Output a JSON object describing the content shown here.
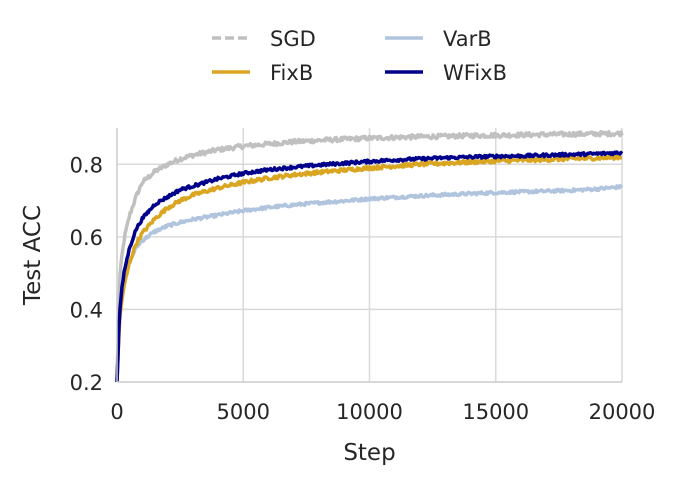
{
  "chart_data": {
    "type": "line",
    "title": "",
    "xlabel": "Step",
    "ylabel": "Test ACC",
    "xlim": [
      0,
      20000
    ],
    "ylim": [
      0.2,
      0.9
    ],
    "xticks": [
      0,
      5000,
      10000,
      15000,
      20000
    ],
    "xtick_labels": [
      "0",
      "5000",
      "10000",
      "15000",
      "20000"
    ],
    "yticks": [
      0.2,
      0.4,
      0.6,
      0.8
    ],
    "ytick_labels": [
      "0.2",
      "0.4",
      "0.6",
      "0.8"
    ],
    "grid": true,
    "legend_position": "top-center",
    "series": [
      {
        "name": "SGD",
        "color": "#c0c0c0",
        "dashed": true,
        "x": [
          0,
          100,
          200,
          300,
          500,
          750,
          1000,
          1500,
          2000,
          2500,
          3000,
          4000,
          5000,
          6000,
          7000,
          8000,
          9000,
          10000,
          11000,
          12000,
          13000,
          14000,
          15000,
          16000,
          17000,
          18000,
          19000,
          20000
        ],
        "y": [
          0.2,
          0.48,
          0.55,
          0.6,
          0.66,
          0.71,
          0.75,
          0.78,
          0.8,
          0.815,
          0.825,
          0.84,
          0.85,
          0.856,
          0.862,
          0.866,
          0.869,
          0.872,
          0.874,
          0.876,
          0.877,
          0.879,
          0.88,
          0.881,
          0.882,
          0.883,
          0.884,
          0.885
        ]
      },
      {
        "name": "VarB",
        "color": "#b0c4de",
        "dashed": false,
        "x": [
          0,
          100,
          200,
          300,
          500,
          750,
          1000,
          1500,
          2000,
          2500,
          3000,
          4000,
          5000,
          6000,
          7000,
          8000,
          9000,
          10000,
          11000,
          12000,
          13000,
          14000,
          15000,
          16000,
          17000,
          18000,
          19000,
          20000
        ],
        "y": [
          0.2,
          0.38,
          0.44,
          0.48,
          0.53,
          0.57,
          0.59,
          0.615,
          0.63,
          0.64,
          0.648,
          0.66,
          0.672,
          0.681,
          0.688,
          0.694,
          0.699,
          0.705,
          0.709,
          0.713,
          0.716,
          0.719,
          0.722,
          0.724,
          0.726,
          0.728,
          0.732,
          0.738
        ]
      },
      {
        "name": "FixB",
        "color": "#daa520",
        "dashed": false,
        "x": [
          0,
          100,
          200,
          300,
          500,
          750,
          1000,
          1500,
          2000,
          2500,
          3000,
          4000,
          5000,
          6000,
          7000,
          8000,
          9000,
          10000,
          11000,
          12000,
          13000,
          14000,
          15000,
          16000,
          17000,
          18000,
          19000,
          20000
        ],
        "y": [
          0.2,
          0.37,
          0.43,
          0.47,
          0.53,
          0.58,
          0.61,
          0.65,
          0.68,
          0.7,
          0.715,
          0.735,
          0.75,
          0.762,
          0.771,
          0.778,
          0.784,
          0.79,
          0.795,
          0.8,
          0.803,
          0.806,
          0.809,
          0.811,
          0.813,
          0.815,
          0.817,
          0.82
        ]
      },
      {
        "name": "WFixB",
        "color": "#00008b",
        "dashed": false,
        "x": [
          0,
          100,
          200,
          300,
          500,
          750,
          1000,
          1500,
          2000,
          2500,
          3000,
          4000,
          5000,
          6000,
          7000,
          8000,
          9000,
          10000,
          11000,
          12000,
          13000,
          14000,
          15000,
          16000,
          17000,
          18000,
          19000,
          20000
        ],
        "y": [
          0.2,
          0.39,
          0.46,
          0.51,
          0.57,
          0.62,
          0.65,
          0.69,
          0.71,
          0.73,
          0.74,
          0.76,
          0.775,
          0.785,
          0.792,
          0.798,
          0.803,
          0.808,
          0.812,
          0.815,
          0.818,
          0.82,
          0.822,
          0.823,
          0.825,
          0.827,
          0.829,
          0.832
        ]
      }
    ]
  }
}
